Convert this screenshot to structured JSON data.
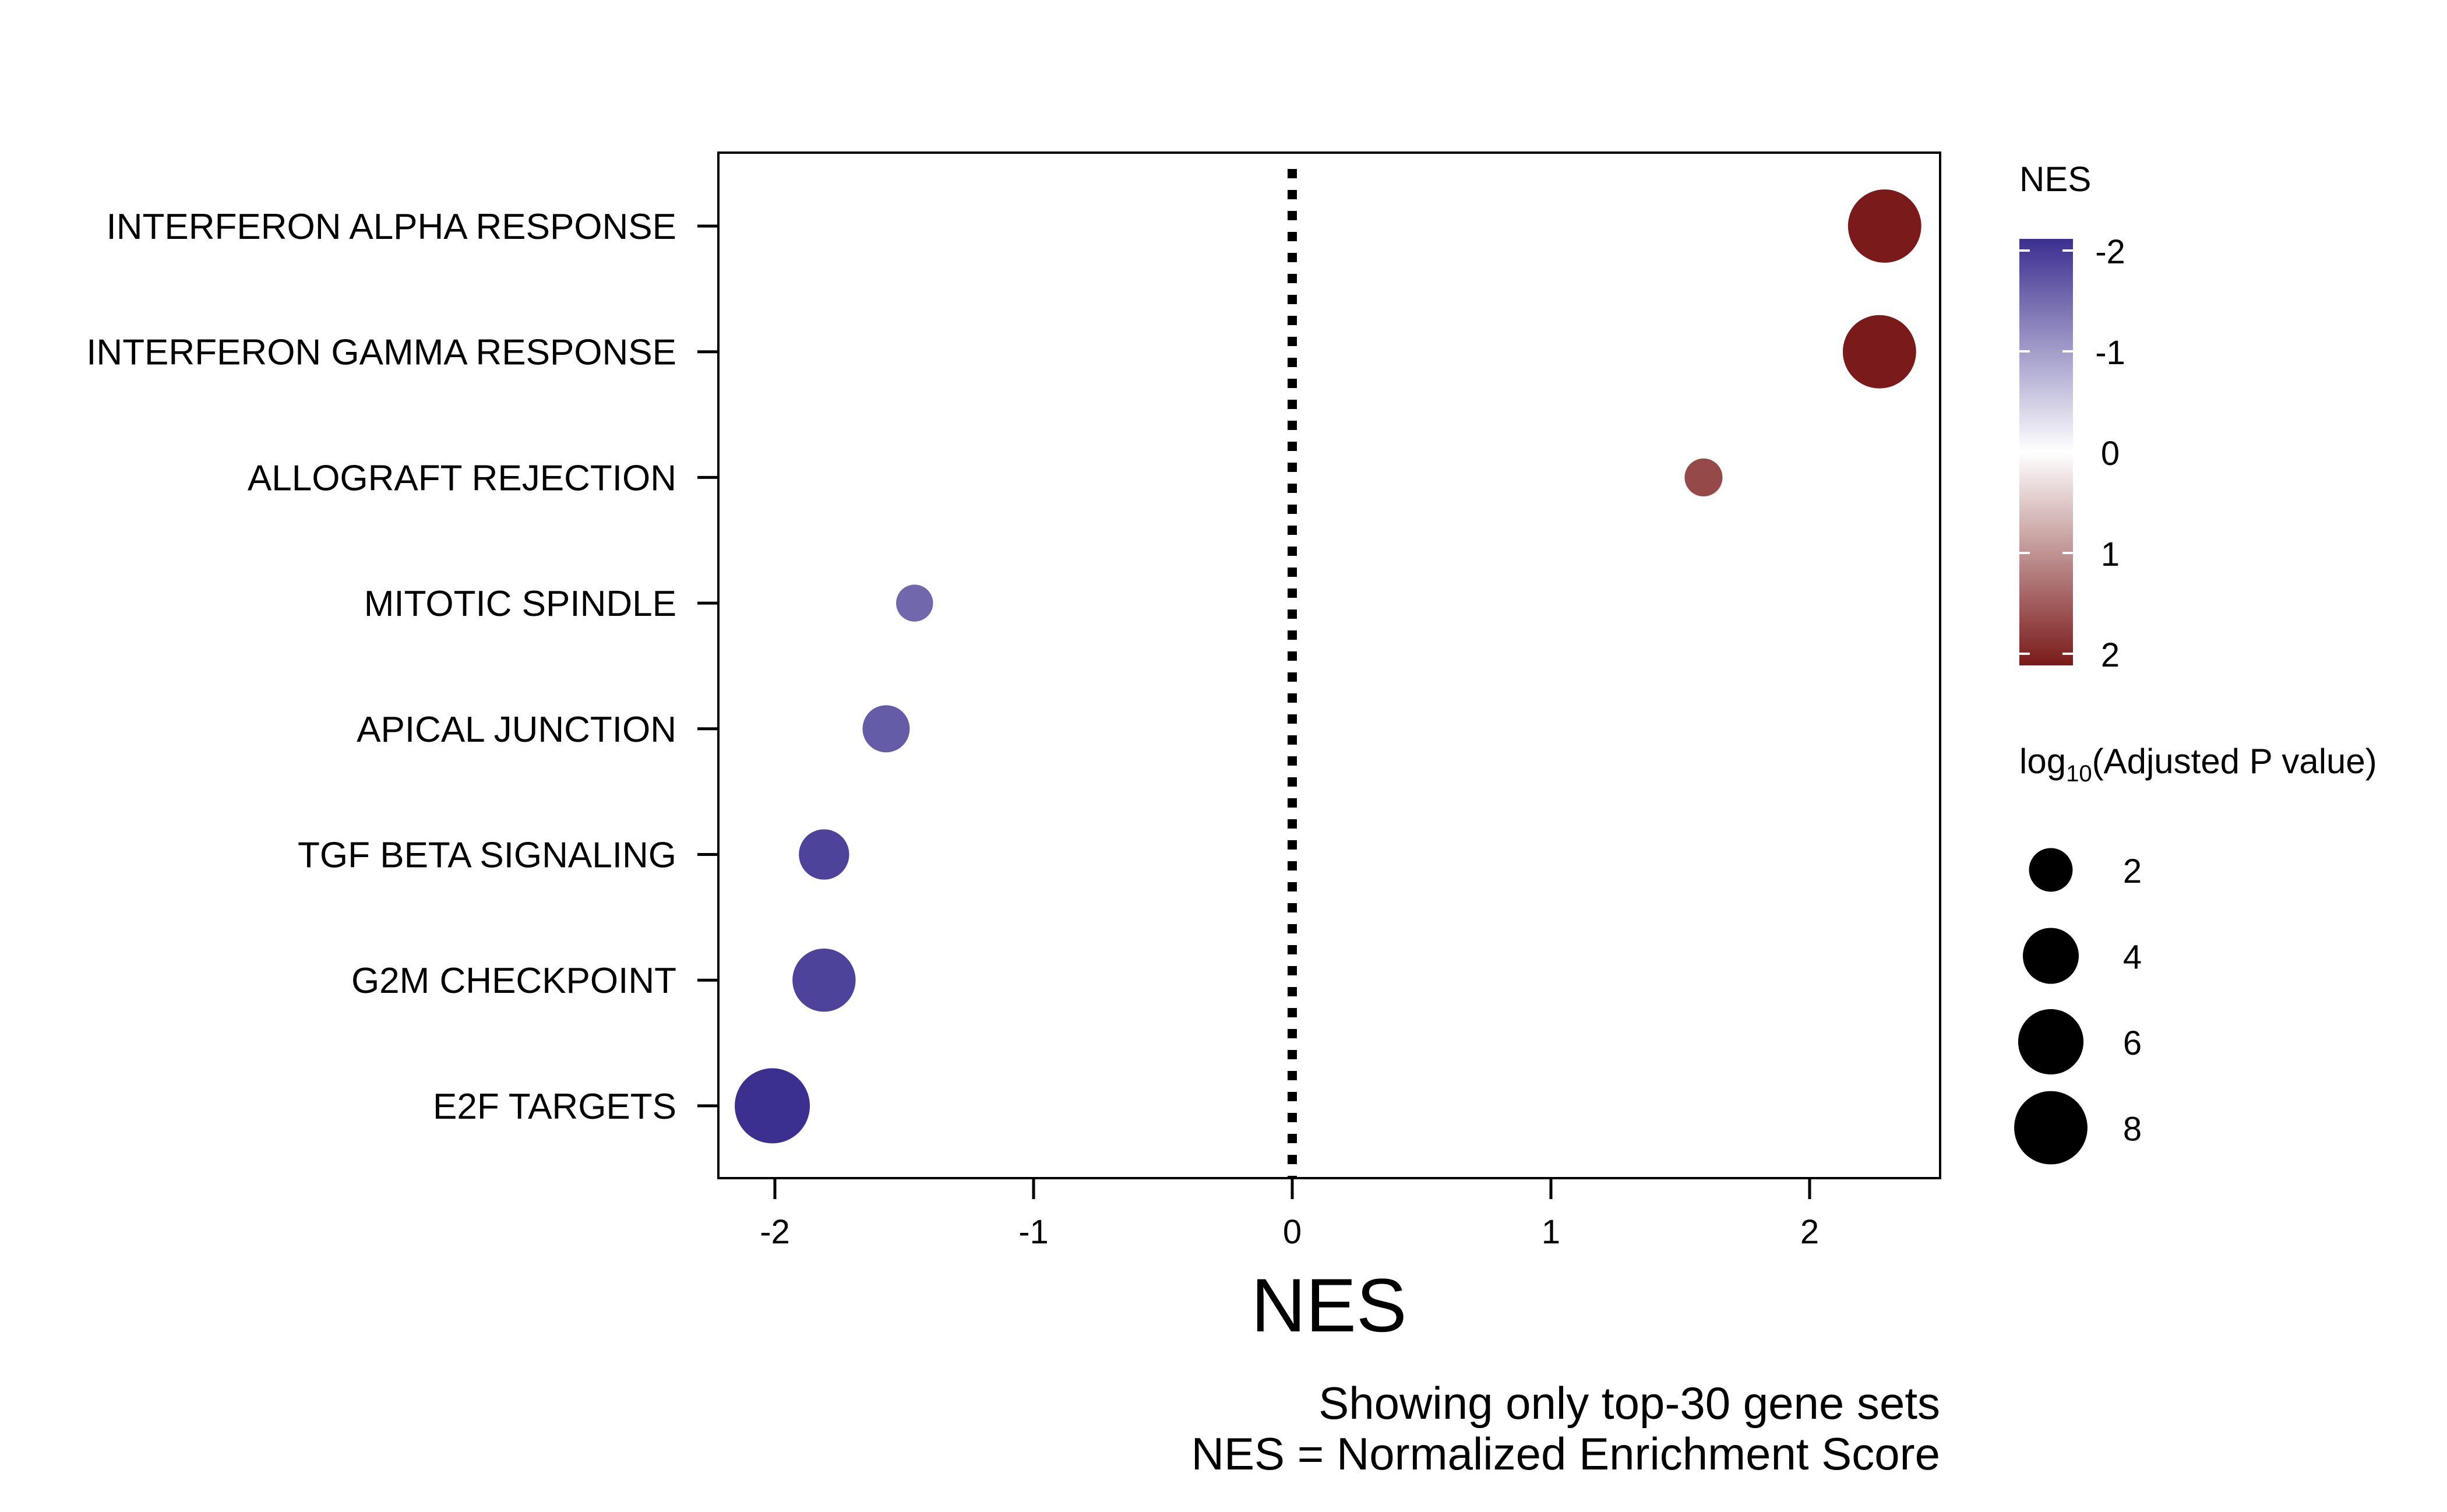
{
  "chart_data": {
    "type": "scatter",
    "xlabel": "NES",
    "xlim": [
      -2.2,
      2.5
    ],
    "xticks": [
      -2,
      -1,
      0,
      1,
      2
    ],
    "reference_line": {
      "x": 0,
      "style": "dotted"
    },
    "categories": [
      "INTERFERON ALPHA RESPONSE",
      "INTERFERON GAMMA RESPONSE",
      "ALLOGRAFT REJECTION",
      "MITOTIC SPINDLE",
      "APICAL JUNCTION",
      "TGF BETA SIGNALING",
      "G2M CHECKPOINT",
      "E2F TARGETS"
    ],
    "points": [
      {
        "category": "INTERFERON ALPHA RESPONSE",
        "nes": 2.29,
        "size": 8.0
      },
      {
        "category": "INTERFERON GAMMA RESPONSE",
        "nes": 2.27,
        "size": 8.0
      },
      {
        "category": "ALLOGRAFT REJECTION",
        "nes": 1.59,
        "size": 1.3
      },
      {
        "category": "MITOTIC SPINDLE",
        "nes": -1.46,
        "size": 1.2
      },
      {
        "category": "APICAL JUNCTION",
        "nes": -1.57,
        "size": 2.5
      },
      {
        "category": "TGF BETA SIGNALING",
        "nes": -1.81,
        "size": 3.0
      },
      {
        "category": "G2M CHECKPOINT",
        "nes": -1.81,
        "size": 5.5
      },
      {
        "category": "E2F TARGETS",
        "nes": -2.01,
        "size": 8.5
      }
    ],
    "color_legend": {
      "title": "NES",
      "ticks": [
        "-2",
        "-1",
        "0",
        "1",
        "2"
      ],
      "tick_values": [
        -2,
        -1,
        0,
        1,
        2
      ],
      "low_color": "#3b2f8f",
      "mid_color": "#ffffff",
      "high_color": "#7a1a1a"
    },
    "size_legend": {
      "title_prefix": "log",
      "title_sub": "10",
      "title_rest": "(Adjusted P value)",
      "values": [
        2,
        4,
        6,
        8
      ],
      "labels": [
        "2",
        "4",
        "6",
        "8"
      ]
    },
    "caption": [
      "Showing only top-30 gene sets",
      "NES = Normalized Enrichment Score"
    ]
  }
}
